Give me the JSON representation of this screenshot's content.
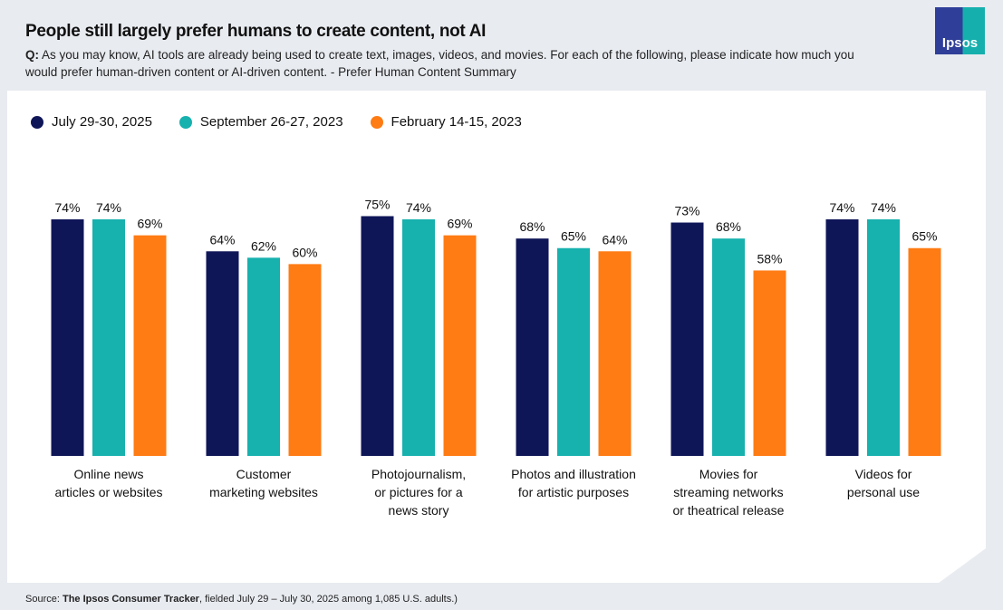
{
  "header": {
    "title": "People still largely prefer humans to create content, not AI",
    "question_prefix": "Q:",
    "question": " As you may know, AI tools are already being used to create text, images, videos, and movies. For each of the following, please indicate how much you would prefer human-driven content or AI-driven content. - Prefer Human Content Summary",
    "logo": "Ipsos"
  },
  "footer": {
    "source_prefix": "Source: ",
    "source_bold": "The Ipsos Consumer Tracker",
    "source_rest": ", fielded July 29 – July 30, 2025 among 1,085 U.S. adults.)"
  },
  "chart_data": {
    "type": "bar",
    "categories": [
      "Online news articles or websites",
      "Customer marketing websites",
      "Photojournalism, or pictures for a news story",
      "Photos and illustration for artistic purposes",
      "Movies for streaming networks or theatrical release",
      "Videos for personal use"
    ],
    "category_lines": [
      [
        "Online news",
        "articles or websites"
      ],
      [
        "Customer",
        "marketing websites"
      ],
      [
        "Photojournalism,",
        "or pictures for a",
        "news story"
      ],
      [
        "Photos and illustration",
        "for artistic purposes"
      ],
      [
        "Movies for",
        "streaming networks",
        "or theatrical release"
      ],
      [
        "Videos for",
        "personal use"
      ]
    ],
    "series": [
      {
        "name": "July 29-30, 2025",
        "color": "#0f1658",
        "values": [
          74,
          64,
          75,
          68,
          73,
          74
        ]
      },
      {
        "name": "September 26-27, 2023",
        "color": "#17b1ae",
        "values": [
          74,
          62,
          74,
          65,
          68,
          74
        ]
      },
      {
        "name": "February 14-15, 2023",
        "color": "#ff7b13",
        "values": [
          69,
          60,
          69,
          64,
          58,
          65
        ]
      }
    ],
    "value_suffix": "%",
    "ylim": [
      0,
      100
    ],
    "grid": false,
    "legend": "top-left"
  }
}
